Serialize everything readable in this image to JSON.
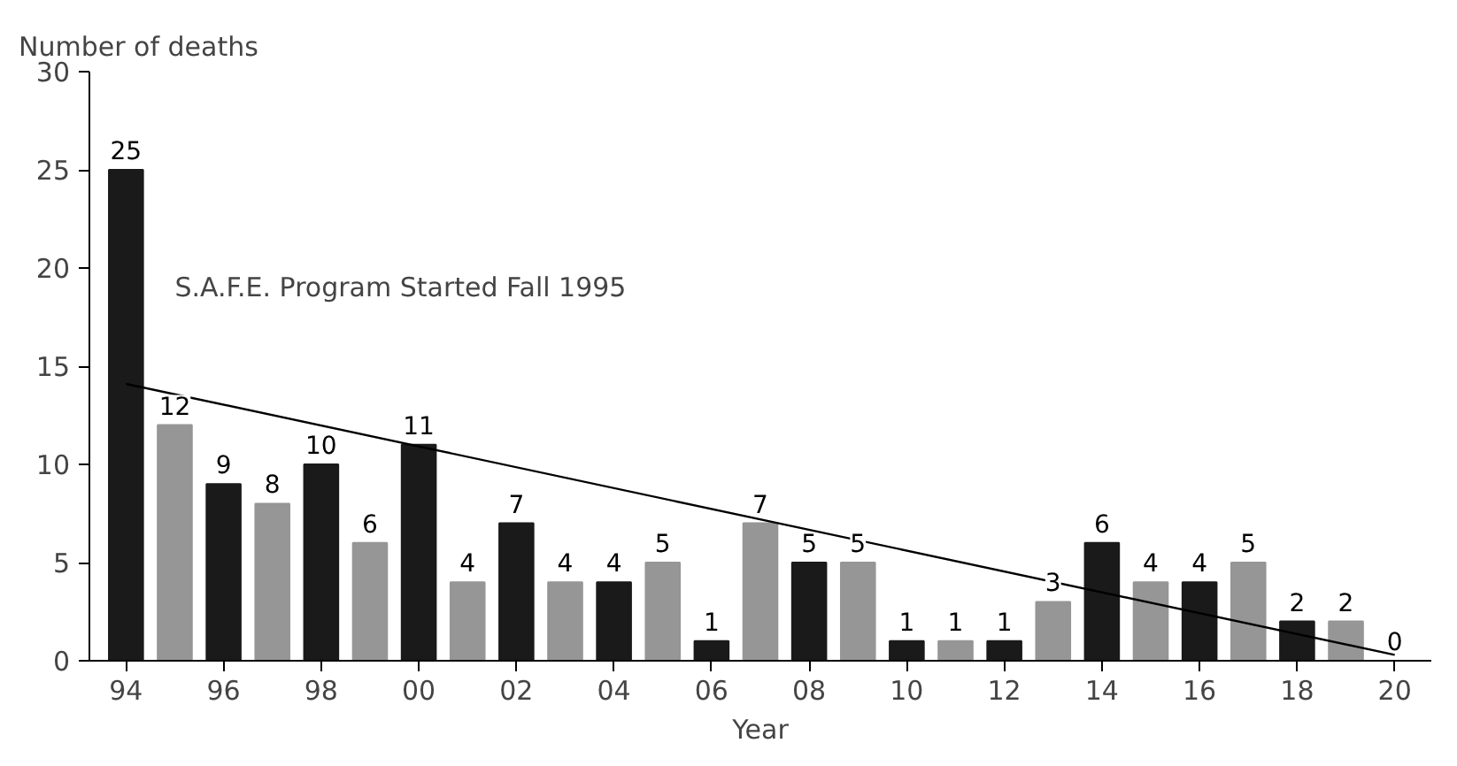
{
  "chart_data": {
    "type": "bar",
    "xlabel": "Year",
    "ylabel": "Number of deaths",
    "categories": [
      "94",
      null,
      "96",
      null,
      "98",
      null,
      "00",
      null,
      "02",
      null,
      "04",
      null,
      "06",
      null,
      "08",
      null,
      "10",
      null,
      "12",
      null,
      "14",
      null,
      "16",
      null,
      "18",
      null,
      "20"
    ],
    "series": [
      {
        "values": [
          25,
          12,
          9,
          8,
          10,
          6,
          11,
          4,
          7,
          4,
          4,
          5,
          1,
          7,
          5,
          5,
          1,
          1,
          1,
          3,
          6,
          4,
          4,
          5,
          2,
          2,
          0
        ],
        "value_labels": [
          "25",
          "12",
          "9",
          "8",
          "10",
          "6",
          "11",
          "4",
          "7",
          "4",
          "4",
          "5",
          "1",
          "7",
          "5",
          "5",
          "1",
          "1",
          "1",
          "3",
          "6",
          "4",
          "4",
          "5",
          "2",
          "2",
          "0"
        ],
        "colors": [
          "#1a1a1a",
          "#969696",
          "#1a1a1a",
          "#969696",
          "#1a1a1a",
          "#969696",
          "#1a1a1a",
          "#969696",
          "#1a1a1a",
          "#969696",
          "#1a1a1a",
          "#969696",
          "#1a1a1a",
          "#969696",
          "#1a1a1a",
          "#969696",
          "#1a1a1a",
          "#969696",
          "#1a1a1a",
          "#969696",
          "#1a1a1a",
          "#969696",
          "#1a1a1a",
          "#969696",
          "#1a1a1a",
          "#969696",
          "#1a1a1a"
        ]
      },
      {
        "type": "line",
        "x": [
          "94",
          "20"
        ],
        "values": [
          14.1,
          0.3
        ],
        "color": "#000000"
      }
    ],
    "annotations": [
      "S.A.F.E. Program Started Fall 1995"
    ],
    "ylim": [
      0,
      30
    ],
    "yticks": [
      0,
      5,
      10,
      15,
      20,
      25,
      30
    ],
    "grid": false
  }
}
